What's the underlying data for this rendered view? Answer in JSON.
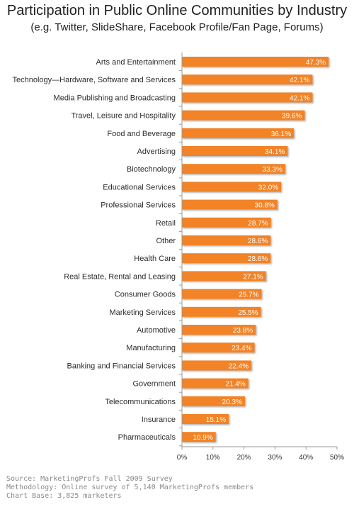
{
  "chart_data": {
    "type": "bar",
    "orientation": "horizontal",
    "title": "Participation in Public Online Communities by Industry",
    "subtitle": "(e.g. Twitter, SlideShare, Facebook Profile/Fan Page, Forums)",
    "categories": [
      "Arts and Entertainment",
      "Technology—Hardware, Software and Services",
      "Media Publishing and Broadcasting",
      "Travel, Leisure and Hospitality",
      "Food and Beverage",
      "Advertising",
      "Biotechnology",
      "Educational Services",
      "Professional Services",
      "Retail",
      "Other",
      "Health Care",
      "Real Estate, Rental and Leasing",
      "Consumer Goods",
      "Marketing Services",
      "Automotive",
      "Manufacturing",
      "Banking and Financial Services",
      "Government",
      "Telecommunications",
      "Insurance",
      "Pharmaceuticals"
    ],
    "values": [
      47.3,
      42.1,
      42.1,
      39.6,
      36.1,
      34.1,
      33.3,
      32.0,
      30.8,
      28.7,
      28.6,
      28.6,
      27.1,
      25.7,
      25.5,
      23.8,
      23.4,
      22.4,
      21.4,
      20.3,
      15.1,
      10.9
    ],
    "value_labels": [
      "47.3%",
      "42.1%",
      "42.1%",
      "39.6%",
      "36.1%",
      "34.1%",
      "33.3%",
      "32.0%",
      "30.8%",
      "28.7%",
      "28.6%",
      "28.6%",
      "27.1%",
      "25.7%",
      "25.5%",
      "23.8%",
      "23.4%",
      "22.4%",
      "21.4%",
      "20.3%",
      "15.1%",
      "10.9%"
    ],
    "xlim": [
      0,
      50
    ],
    "xticks": [
      "0%",
      "10%",
      "20%",
      "30%",
      "40%",
      "50%"
    ],
    "grid": false,
    "legend": "none",
    "bar_color": "#f28326",
    "label_color": "#ffffff"
  },
  "source": [
    "Source: MarketingProfs Fall 2009 Survey",
    "Methodology: Online survey of 5,140 MarketingProfs members",
    "Chart Base: 3,825 marketers"
  ]
}
